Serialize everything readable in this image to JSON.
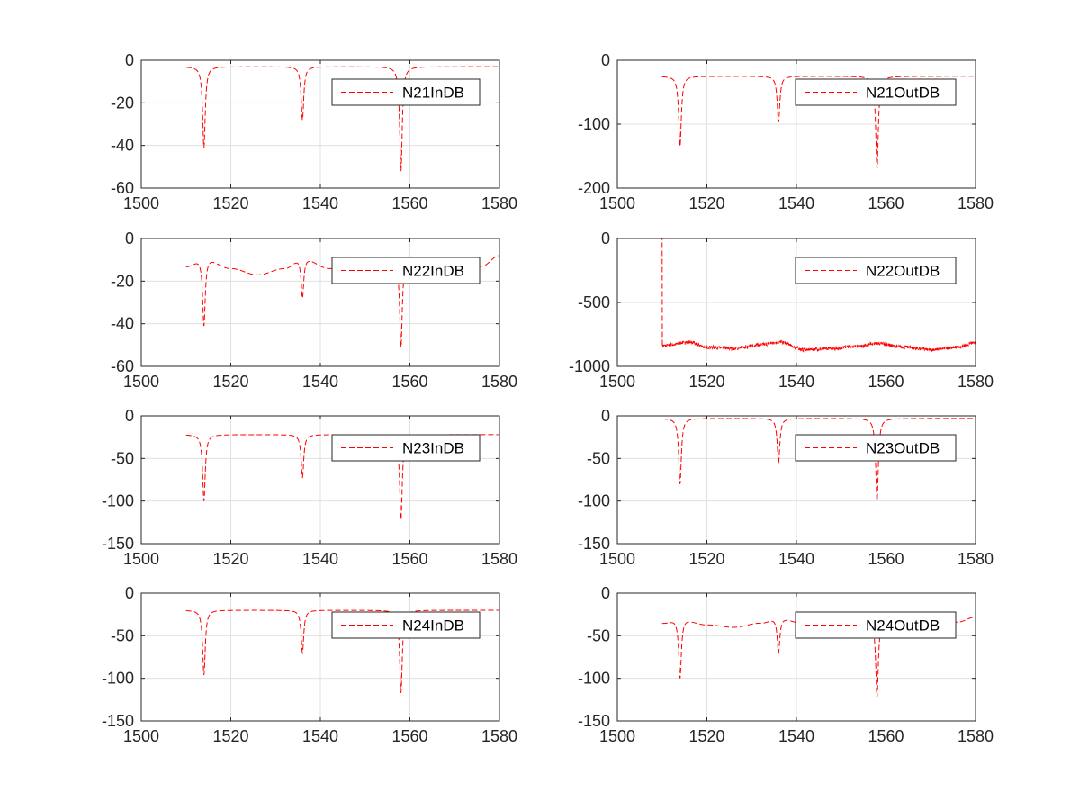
{
  "figure": {
    "background": "#ffffff",
    "line_color": "#ff0000",
    "grid_color": "#e0e0e0",
    "axis_color": "#262626",
    "layout": "4x2 subplots"
  },
  "chart_data": [
    {
      "type": "line",
      "xlim": [
        1500,
        1580
      ],
      "ylim": [
        -60,
        0
      ],
      "xticks": [
        1500,
        1520,
        1540,
        1560,
        1580
      ],
      "yticks": [
        0,
        -20,
        -40,
        -60
      ],
      "grid": true,
      "legend_placement": "top-right",
      "line_style": "dashed",
      "series": [
        {
          "name": "N21InDB",
          "x_range": [
            1510,
            1580
          ],
          "baseline": [
            [
              1510,
              -3
            ],
            [
              1535,
              -3
            ],
            [
              1560,
              -3
            ],
            [
              1580,
              -3
            ]
          ],
          "dips": [
            [
              1514,
              -41
            ],
            [
              1536,
              -28
            ],
            [
              1558,
              -52
            ]
          ],
          "noise": 0
        }
      ]
    },
    {
      "type": "line",
      "xlim": [
        1500,
        1580
      ],
      "ylim": [
        -200,
        0
      ],
      "xticks": [
        1500,
        1520,
        1540,
        1560,
        1580
      ],
      "yticks": [
        0,
        -100,
        -200
      ],
      "grid": true,
      "legend_placement": "top-right",
      "line_style": "dashed",
      "series": [
        {
          "name": "N21OutDB",
          "x_range": [
            1510,
            1580
          ],
          "baseline": [
            [
              1510,
              -25
            ],
            [
              1535,
              -25
            ],
            [
              1560,
              -25
            ],
            [
              1580,
              -25
            ]
          ],
          "dips": [
            [
              1514,
              -135
            ],
            [
              1536,
              -97
            ],
            [
              1558,
              -170
            ]
          ],
          "noise": 0
        }
      ]
    },
    {
      "type": "line",
      "xlim": [
        1500,
        1580
      ],
      "ylim": [
        -60,
        0
      ],
      "xticks": [
        1500,
        1520,
        1540,
        1560,
        1580
      ],
      "yticks": [
        0,
        -20,
        -40,
        -60
      ],
      "grid": true,
      "legend_placement": "top-right",
      "line_style": "dashed",
      "series": [
        {
          "name": "N22InDB",
          "x_range": [
            1510,
            1580
          ],
          "baseline": [
            [
              1510,
              -13
            ],
            [
              1514,
              -9
            ],
            [
              1520,
              -14
            ],
            [
              1526,
              -17
            ],
            [
              1532,
              -14
            ],
            [
              1536,
              -9
            ],
            [
              1542,
              -14
            ],
            [
              1548,
              -16
            ],
            [
              1554,
              -14
            ],
            [
              1558,
              -9
            ],
            [
              1564,
              -14
            ],
            [
              1570,
              -16
            ],
            [
              1576,
              -13
            ],
            [
              1580,
              -8
            ]
          ],
          "dips": [
            [
              1514,
              -41
            ],
            [
              1536,
              -28
            ],
            [
              1558,
              -51
            ]
          ],
          "noise": 0
        }
      ]
    },
    {
      "type": "line",
      "xlim": [
        1500,
        1580
      ],
      "ylim": [
        -1000,
        0
      ],
      "xticks": [
        1500,
        1520,
        1540,
        1560,
        1580
      ],
      "yticks": [
        0,
        -500,
        -1000
      ],
      "grid": true,
      "legend_placement": "top-right",
      "line_style": "dashed",
      "series": [
        {
          "name": "N22OutDB",
          "x_range": [
            1510,
            1580
          ],
          "baseline": [
            [
              1510,
              0
            ],
            [
              1510.05,
              -840
            ],
            [
              1512,
              -830
            ],
            [
              1516,
              -810
            ],
            [
              1520,
              -850
            ],
            [
              1526,
              -860
            ],
            [
              1532,
              -830
            ],
            [
              1536,
              -810
            ],
            [
              1542,
              -870
            ],
            [
              1548,
              -860
            ],
            [
              1554,
              -840
            ],
            [
              1558,
              -820
            ],
            [
              1564,
              -850
            ],
            [
              1570,
              -870
            ],
            [
              1576,
              -850
            ],
            [
              1580,
              -815
            ]
          ],
          "dips": [],
          "noise": 12
        }
      ]
    },
    {
      "type": "line",
      "xlim": [
        1500,
        1580
      ],
      "ylim": [
        -150,
        0
      ],
      "xticks": [
        1500,
        1520,
        1540,
        1560,
        1580
      ],
      "yticks": [
        0,
        -50,
        -100,
        -150
      ],
      "grid": true,
      "legend_placement": "top-right",
      "line_style": "dashed",
      "series": [
        {
          "name": "N23InDB",
          "x_range": [
            1510,
            1580
          ],
          "baseline": [
            [
              1510,
              -22
            ],
            [
              1535,
              -22
            ],
            [
              1560,
              -22
            ],
            [
              1580,
              -22
            ]
          ],
          "dips": [
            [
              1514,
              -100
            ],
            [
              1536,
              -72
            ],
            [
              1558,
              -122
            ]
          ],
          "noise": 0
        }
      ]
    },
    {
      "type": "line",
      "xlim": [
        1500,
        1580
      ],
      "ylim": [
        -150,
        0
      ],
      "xticks": [
        1500,
        1520,
        1540,
        1560,
        1580
      ],
      "yticks": [
        0,
        -50,
        -100,
        -150
      ],
      "grid": true,
      "legend_placement": "top-right",
      "line_style": "dashed",
      "series": [
        {
          "name": "N23OutDB",
          "x_range": [
            1510,
            1580
          ],
          "baseline": [
            [
              1510,
              -3
            ],
            [
              1535,
              -3
            ],
            [
              1560,
              -3
            ],
            [
              1580,
              -3
            ]
          ],
          "dips": [
            [
              1514,
              -80
            ],
            [
              1536,
              -55
            ],
            [
              1558,
              -100
            ]
          ],
          "noise": 0
        }
      ]
    },
    {
      "type": "line",
      "xlim": [
        1500,
        1580
      ],
      "ylim": [
        -150,
        0
      ],
      "xticks": [
        1500,
        1520,
        1540,
        1560,
        1580
      ],
      "yticks": [
        0,
        -50,
        -100,
        -150
      ],
      "grid": true,
      "legend_placement": "top-right",
      "line_style": "dashed",
      "series": [
        {
          "name": "N24InDB",
          "x_range": [
            1510,
            1580
          ],
          "baseline": [
            [
              1510,
              -20
            ],
            [
              1535,
              -20
            ],
            [
              1560,
              -20
            ],
            [
              1580,
              -20
            ]
          ],
          "dips": [
            [
              1514,
              -96
            ],
            [
              1536,
              -70
            ],
            [
              1558,
              -117
            ]
          ],
          "noise": 0
        }
      ]
    },
    {
      "type": "line",
      "xlim": [
        1500,
        1580
      ],
      "ylim": [
        -150,
        0
      ],
      "xticks": [
        1500,
        1520,
        1540,
        1560,
        1580
      ],
      "yticks": [
        0,
        -50,
        -100,
        -150
      ],
      "grid": true,
      "legend_placement": "top-right",
      "line_style": "dashed",
      "series": [
        {
          "name": "N24OutDB",
          "x_range": [
            1510,
            1580
          ],
          "baseline": [
            [
              1510,
              -35
            ],
            [
              1514,
              -30
            ],
            [
              1520,
              -37
            ],
            [
              1526,
              -40
            ],
            [
              1532,
              -35
            ],
            [
              1536,
              -29
            ],
            [
              1542,
              -36
            ],
            [
              1548,
              -39
            ],
            [
              1554,
              -35
            ],
            [
              1558,
              -29
            ],
            [
              1564,
              -36
            ],
            [
              1570,
              -38
            ],
            [
              1576,
              -34
            ],
            [
              1580,
              -28
            ]
          ],
          "dips": [
            [
              1514,
              -100
            ],
            [
              1536,
              -70
            ],
            [
              1558,
              -122
            ]
          ],
          "noise": 0
        }
      ]
    }
  ]
}
